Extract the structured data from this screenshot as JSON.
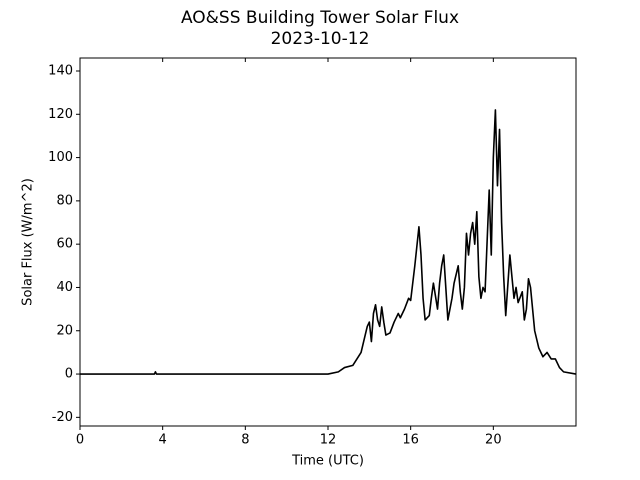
{
  "chart_data": {
    "type": "line",
    "title": "AO&SS Building Tower Solar Flux",
    "subtitle": "2023-10-12",
    "x_label": "Time (UTC)",
    "y_label": "Solar Flux (W/m^2)",
    "color": "#000000",
    "xlim": [
      0,
      24
    ],
    "xticks": [
      0,
      4,
      8,
      12,
      16,
      20
    ],
    "ylim": [
      -24,
      146
    ],
    "yticks": [
      -20,
      0,
      20,
      40,
      60,
      80,
      100,
      120,
      140
    ],
    "x": [
      0,
      3.6,
      3.65,
      3.7,
      9.7,
      12,
      12.5,
      12.8,
      13.2,
      13.4,
      13.6,
      13.8,
      13.9,
      14.0,
      14.1,
      14.2,
      14.3,
      14.4,
      14.5,
      14.6,
      14.7,
      14.8,
      15.0,
      15.2,
      15.4,
      15.5,
      15.7,
      15.9,
      16.0,
      16.2,
      16.4,
      16.5,
      16.6,
      16.7,
      16.9,
      17.0,
      17.1,
      17.2,
      17.3,
      17.4,
      17.5,
      17.6,
      17.7,
      17.8,
      18.0,
      18.1,
      18.3,
      18.4,
      18.5,
      18.6,
      18.7,
      18.8,
      18.9,
      19.0,
      19.1,
      19.2,
      19.3,
      19.4,
      19.5,
      19.6,
      19.8,
      19.9,
      20.0,
      20.1,
      20.2,
      20.3,
      20.4,
      20.5,
      20.6,
      20.8,
      20.9,
      21.0,
      21.1,
      21.2,
      21.4,
      21.5,
      21.6,
      21.7,
      21.8,
      22.0,
      22.2,
      22.4,
      22.6,
      22.8,
      23.0,
      23.2,
      23.4,
      24.0
    ],
    "values": [
      0,
      0,
      1,
      0,
      0,
      0,
      1,
      3,
      4,
      7,
      10,
      18,
      22,
      24,
      15,
      28,
      32,
      25,
      22,
      31,
      24,
      18,
      19,
      24,
      28,
      26,
      30,
      35,
      34,
      50,
      68,
      55,
      35,
      25,
      27,
      35,
      42,
      36,
      30,
      42,
      50,
      55,
      40,
      25,
      35,
      42,
      50,
      38,
      30,
      40,
      65,
      55,
      65,
      70,
      60,
      75,
      45,
      35,
      40,
      38,
      85,
      55,
      100,
      122,
      87,
      113,
      70,
      45,
      27,
      55,
      45,
      35,
      40,
      33,
      38,
      25,
      30,
      44,
      40,
      20,
      12,
      8,
      10,
      7,
      7,
      3,
      1,
      0
    ]
  }
}
